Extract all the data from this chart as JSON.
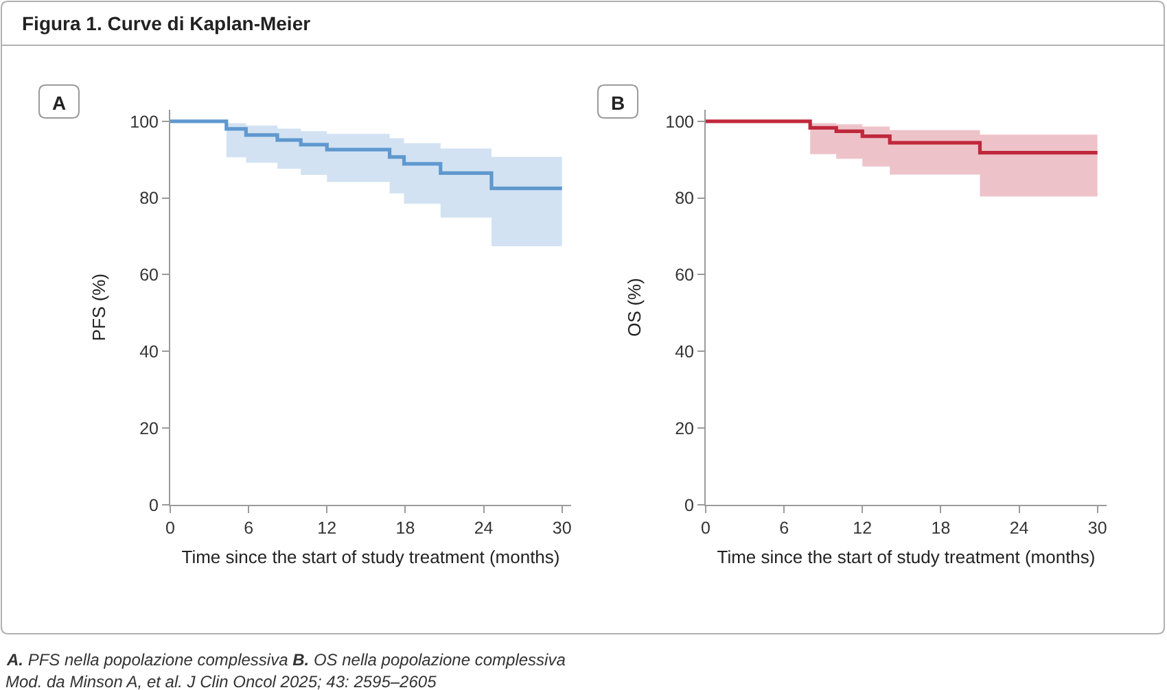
{
  "chart_data": [
    {
      "type": "step",
      "title": "A",
      "xlabel": "Time since the start of study treatment (months)",
      "ylabel": "PFS (%)",
      "xlim": [
        0,
        30.7
      ],
      "xticks": [
        0,
        6,
        12,
        18,
        24,
        30
      ],
      "ylim": [
        0,
        103
      ],
      "yticks": [
        0,
        20,
        40,
        60,
        80,
        100
      ],
      "x": [
        0,
        4.3,
        5.8,
        8.2,
        10.0,
        12.0,
        16.8,
        17.9,
        20.7,
        24.6,
        30
      ],
      "series": [
        {
          "color": "#5f98cf",
          "values": [
            100,
            98,
            96.4,
            95.1,
            93.9,
            92.6,
            90.7,
            88.9,
            86.5,
            82.5,
            82.5
          ],
          "lower": [
            100,
            90.6,
            89.2,
            87.6,
            86.0,
            84.2,
            81.2,
            78.5,
            74.9,
            67.4,
            67.4
          ],
          "upper": [
            100,
            99.5,
            98.9,
            98.1,
            97.4,
            96.7,
            95.6,
            94.3,
            92.9,
            90.7,
            90.7
          ]
        }
      ],
      "annotations": [
        "Figura 1. Curve di Kaplan-Meier",
        "A. PFS nella popolazione complessiva B. OS nella popolazione complessiva",
        "Mod. da Minson A, et al. J Clin Oncol 2025; 43: 2595–2605"
      ]
    },
    {
      "type": "step",
      "title": "B",
      "xlabel": "Time since the start of study treatment (months)",
      "ylabel": "OS (%)",
      "xlim": [
        0,
        30.7
      ],
      "xticks": [
        0,
        6,
        12,
        18,
        24,
        30
      ],
      "ylim": [
        0,
        103
      ],
      "yticks": [
        0,
        20,
        40,
        60,
        80,
        100
      ],
      "x": [
        0,
        8,
        10,
        12,
        14.1,
        21,
        30
      ],
      "series": [
        {
          "color": "#c0283c",
          "values": [
            100,
            98.3,
            97.4,
            96.1,
            94.4,
            91.8,
            91.8
          ],
          "lower": [
            100,
            91.4,
            90.2,
            88.2,
            86.1,
            80.4,
            80.4
          ],
          "upper": [
            100,
            99.5,
            99.2,
            98.6,
            97.7,
            96.5,
            96.5
          ]
        }
      ]
    }
  ]
}
